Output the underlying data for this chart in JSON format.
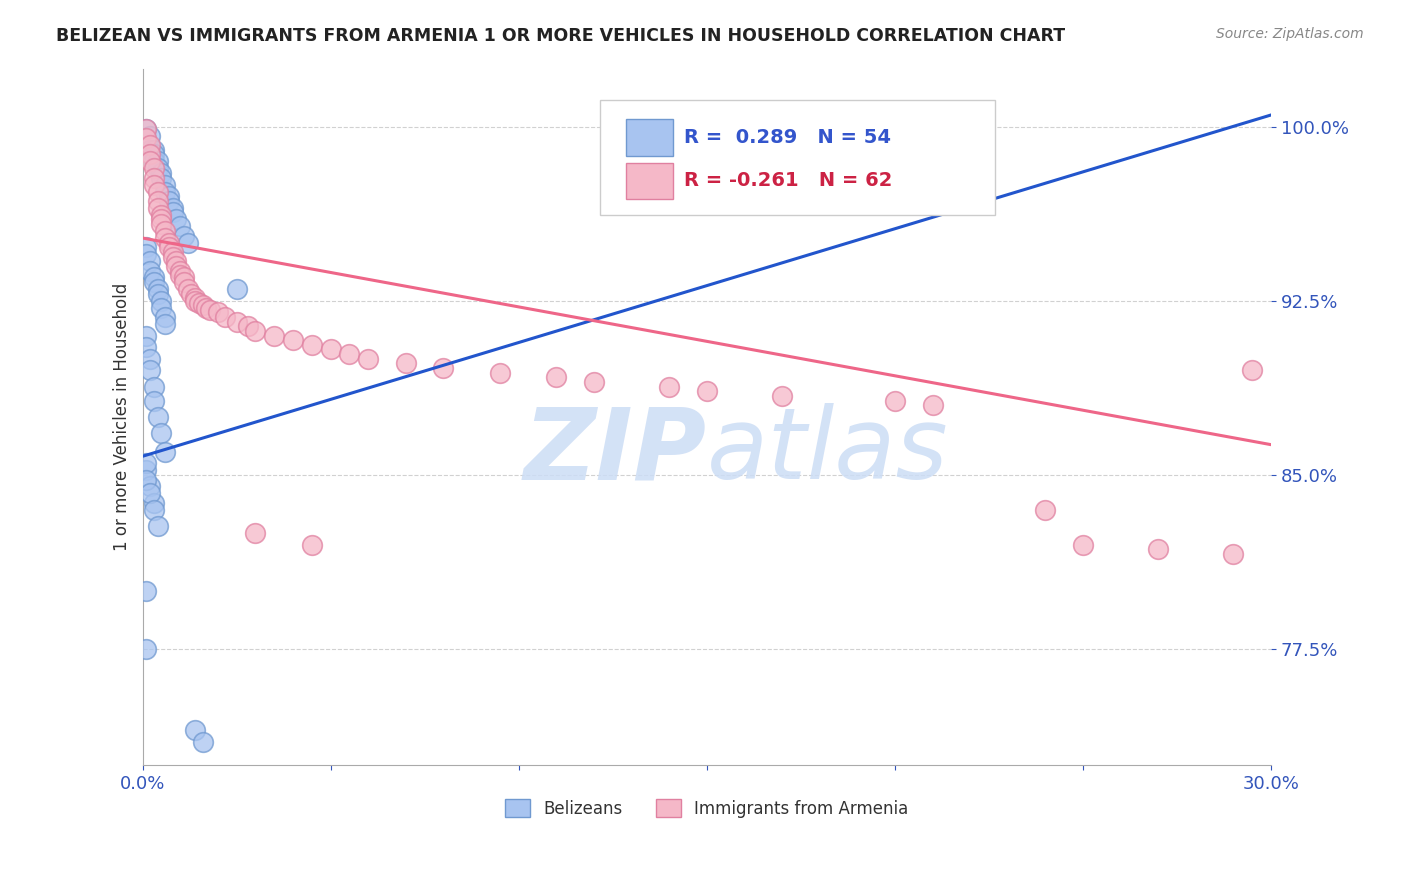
{
  "title": "BELIZEAN VS IMMIGRANTS FROM ARMENIA 1 OR MORE VEHICLES IN HOUSEHOLD CORRELATION CHART",
  "source": "Source: ZipAtlas.com",
  "ylabel": "1 or more Vehicles in Household",
  "blue_R": 0.289,
  "blue_N": 54,
  "pink_R": -0.261,
  "pink_N": 62,
  "blue_color": "#a8c4f0",
  "pink_color": "#f5b8c8",
  "blue_edge_color": "#7099d0",
  "pink_edge_color": "#e080a0",
  "blue_line_color": "#2255cc",
  "pink_line_color": "#ee6688",
  "watermark_color": "#ccddf5",
  "legend_label_blue": "Belizeans",
  "legend_label_pink": "Immigrants from Armenia",
  "xmin": 0.0,
  "xmax": 0.3,
  "ymin": 0.725,
  "ymax": 1.025,
  "ytick_vals": [
    0.775,
    0.85,
    0.925,
    1.0
  ],
  "ytick_labels": [
    "77.5%",
    "85.0%",
    "92.5%",
    "100.0%"
  ],
  "blue_line_x": [
    0.0,
    0.3
  ],
  "blue_line_y": [
    0.858,
    1.005
  ],
  "pink_line_x": [
    0.0,
    0.3
  ],
  "pink_line_y": [
    0.952,
    0.863
  ],
  "blue_pts_x": [
    0.001,
    0.002,
    0.002,
    0.003,
    0.003,
    0.003,
    0.004,
    0.004,
    0.005,
    0.005,
    0.006,
    0.006,
    0.007,
    0.007,
    0.008,
    0.008,
    0.009,
    0.01,
    0.011,
    0.012,
    0.001,
    0.001,
    0.002,
    0.002,
    0.003,
    0.003,
    0.004,
    0.004,
    0.005,
    0.005,
    0.006,
    0.006,
    0.001,
    0.001,
    0.002,
    0.002,
    0.003,
    0.003,
    0.004,
    0.005,
    0.006,
    0.001,
    0.002,
    0.003,
    0.025,
    0.001,
    0.001,
    0.002,
    0.003,
    0.004,
    0.001,
    0.001,
    0.014,
    0.016
  ],
  "blue_pts_y": [
    0.999,
    0.996,
    0.99,
    0.99,
    0.988,
    0.985,
    0.985,
    0.982,
    0.98,
    0.978,
    0.975,
    0.972,
    0.97,
    0.968,
    0.965,
    0.963,
    0.96,
    0.957,
    0.953,
    0.95,
    0.948,
    0.945,
    0.942,
    0.938,
    0.935,
    0.933,
    0.93,
    0.928,
    0.925,
    0.922,
    0.918,
    0.915,
    0.91,
    0.905,
    0.9,
    0.895,
    0.888,
    0.882,
    0.875,
    0.868,
    0.86,
    0.852,
    0.845,
    0.838,
    0.93,
    0.855,
    0.848,
    0.842,
    0.835,
    0.828,
    0.8,
    0.775,
    0.74,
    0.735
  ],
  "pink_pts_x": [
    0.001,
    0.001,
    0.002,
    0.002,
    0.002,
    0.003,
    0.003,
    0.003,
    0.004,
    0.004,
    0.004,
    0.005,
    0.005,
    0.005,
    0.006,
    0.006,
    0.007,
    0.007,
    0.008,
    0.008,
    0.009,
    0.009,
    0.01,
    0.01,
    0.011,
    0.011,
    0.012,
    0.013,
    0.014,
    0.014,
    0.015,
    0.016,
    0.017,
    0.018,
    0.02,
    0.022,
    0.025,
    0.028,
    0.03,
    0.035,
    0.04,
    0.045,
    0.05,
    0.055,
    0.06,
    0.07,
    0.08,
    0.095,
    0.11,
    0.12,
    0.14,
    0.15,
    0.17,
    0.2,
    0.21,
    0.24,
    0.25,
    0.27,
    0.29,
    0.295,
    0.03,
    0.045
  ],
  "pink_pts_y": [
    0.999,
    0.995,
    0.992,
    0.988,
    0.985,
    0.982,
    0.978,
    0.975,
    0.972,
    0.968,
    0.965,
    0.962,
    0.96,
    0.958,
    0.955,
    0.952,
    0.95,
    0.948,
    0.946,
    0.944,
    0.942,
    0.94,
    0.938,
    0.936,
    0.935,
    0.933,
    0.93,
    0.928,
    0.926,
    0.925,
    0.924,
    0.923,
    0.922,
    0.921,
    0.92,
    0.918,
    0.916,
    0.914,
    0.912,
    0.91,
    0.908,
    0.906,
    0.904,
    0.902,
    0.9,
    0.898,
    0.896,
    0.894,
    0.892,
    0.89,
    0.888,
    0.886,
    0.884,
    0.882,
    0.88,
    0.835,
    0.82,
    0.818,
    0.816,
    0.895,
    0.825,
    0.82
  ]
}
